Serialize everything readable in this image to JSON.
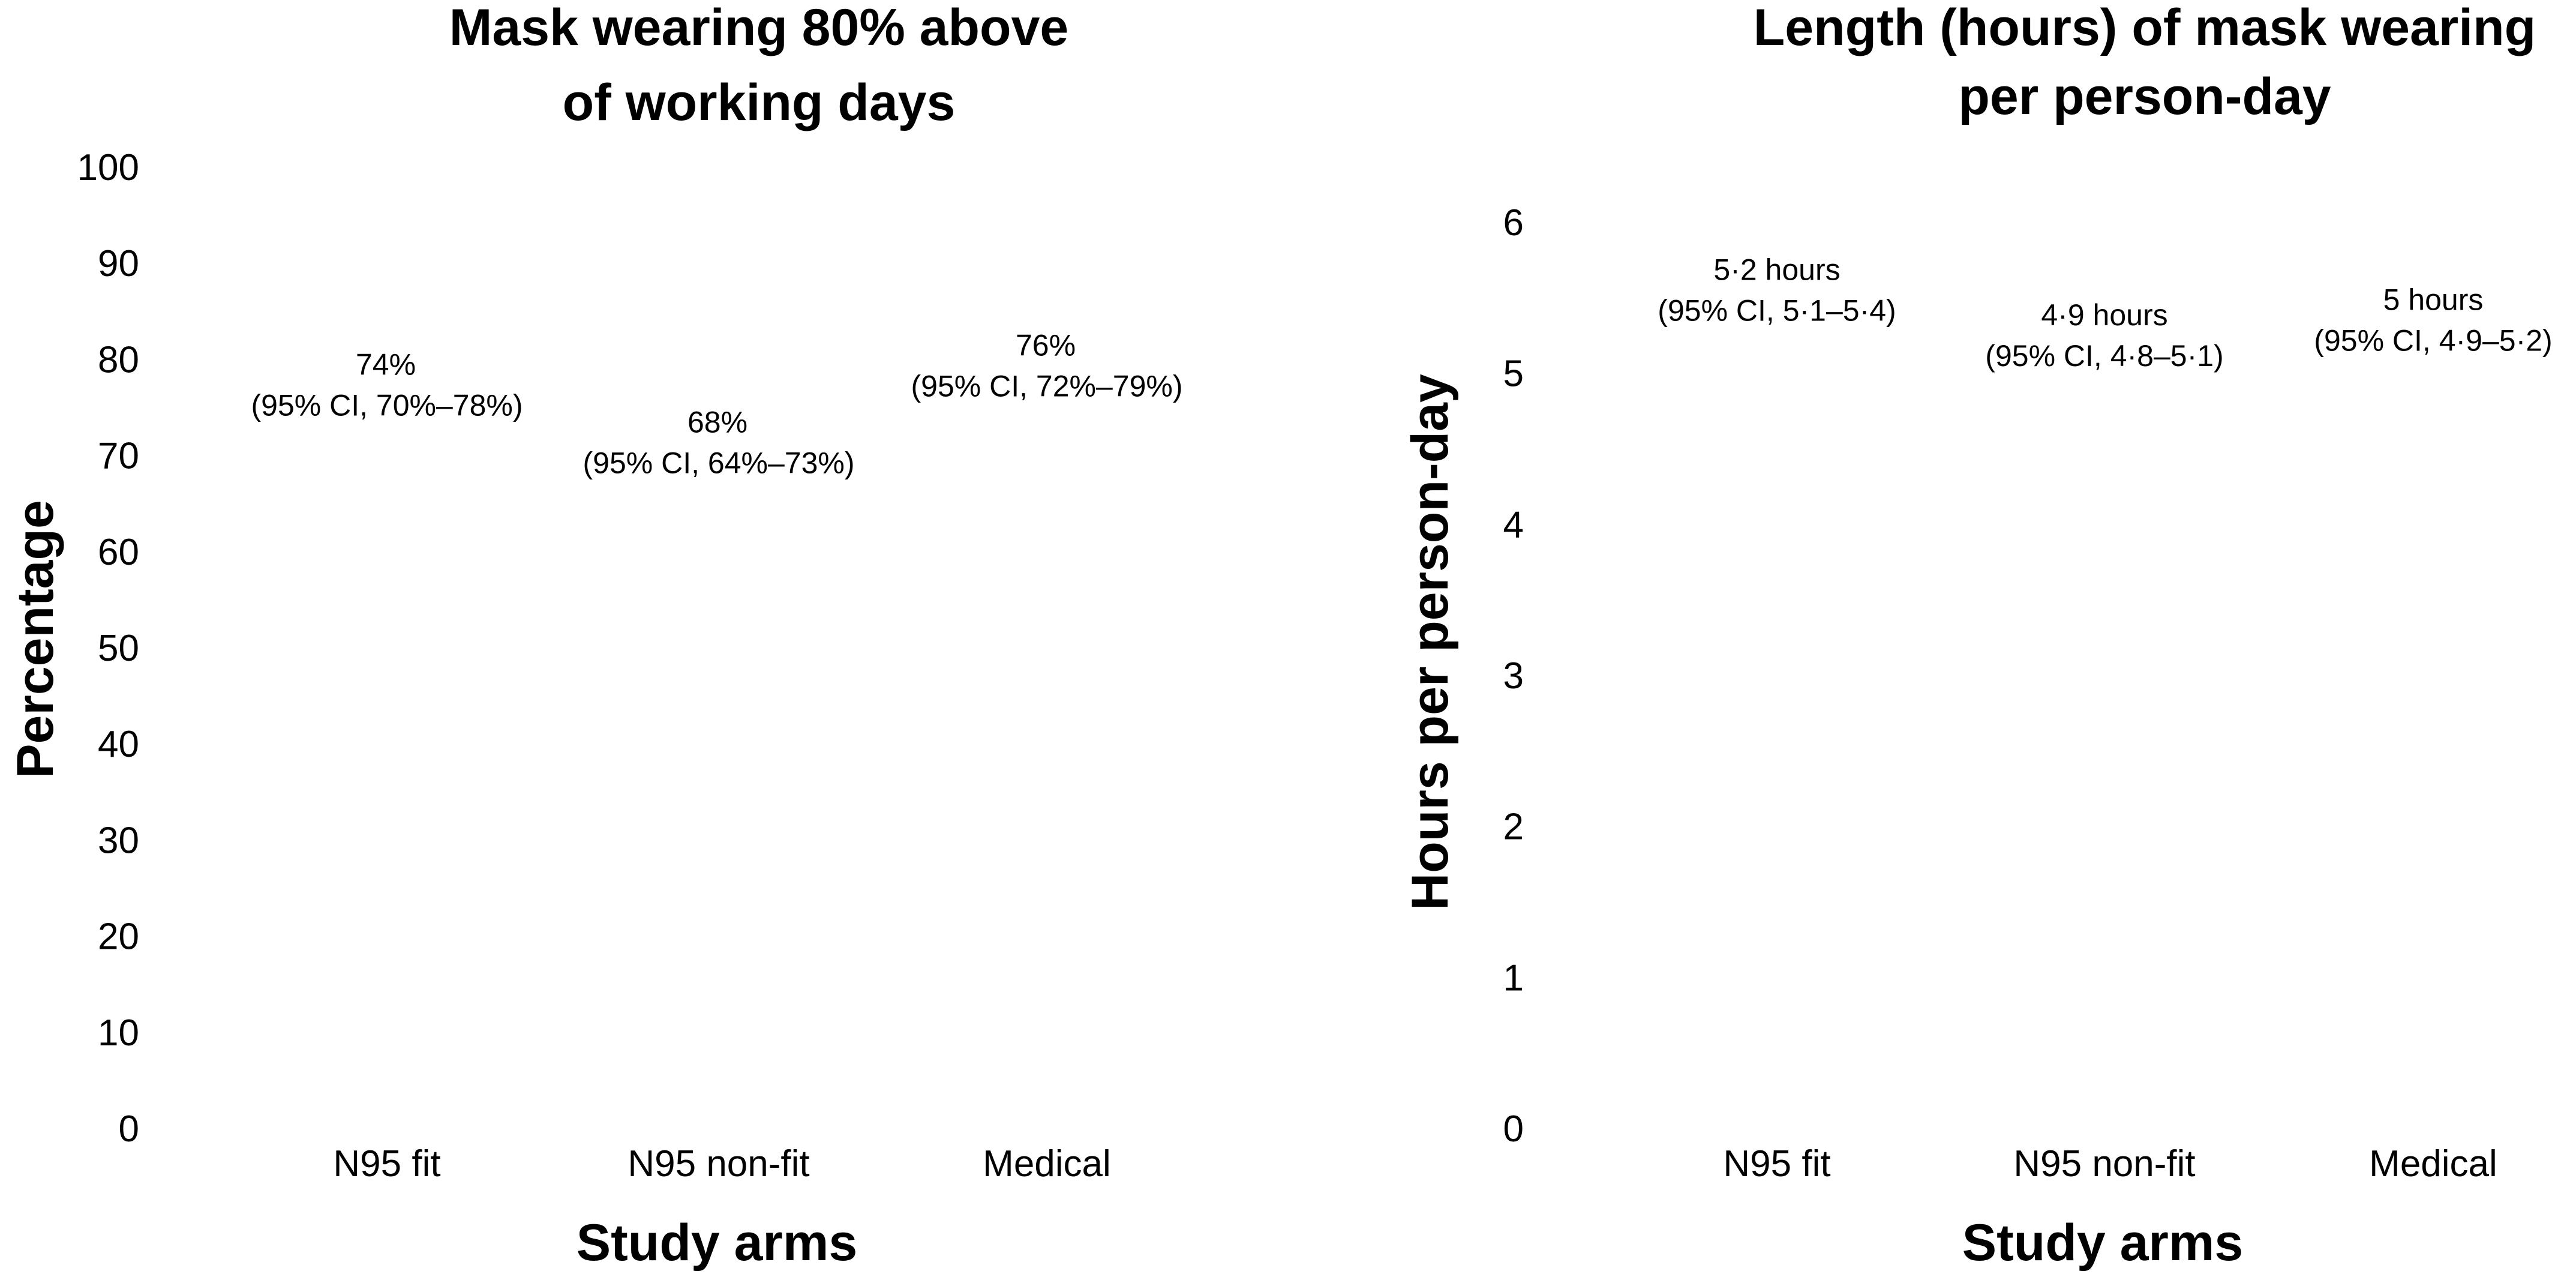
{
  "chart_data": [
    {
      "type": "bar",
      "title": [
        "Mask wearing 80% above",
        "of working days"
      ],
      "xlabel": "Study arms",
      "ylabel": "Percentage",
      "categories": [
        "N95 fit",
        "N95 non-fit",
        "Medical"
      ],
      "values": [
        74,
        68,
        76
      ],
      "ci": [
        [
          70,
          78
        ],
        [
          64,
          73
        ],
        [
          72,
          79
        ]
      ],
      "data_labels": [
        [
          "74%",
          "(95% CI, 70%–78%)"
        ],
        [
          "68%",
          "(95% CI, 64%–73%)"
        ],
        [
          "76%",
          "(95% CI, 72%–79%)"
        ]
      ],
      "yticks": [
        "0",
        "10",
        "20",
        "30",
        "40",
        "50",
        "60",
        "70",
        "80",
        "90",
        "100"
      ],
      "ylim": [
        0,
        100
      ],
      "grid": false
    },
    {
      "type": "bar",
      "title": [
        "Length (hours) of mask wearing",
        "per person-day"
      ],
      "xlabel": "Study arms",
      "ylabel": "Hours per person-day",
      "categories": [
        "N95 fit",
        "N95 non-fit",
        "Medical"
      ],
      "values": [
        5.2,
        4.9,
        5.0
      ],
      "ci": [
        [
          5.1,
          5.4
        ],
        [
          4.8,
          5.1
        ],
        [
          4.9,
          5.2
        ]
      ],
      "data_labels": [
        [
          "5·2 hours",
          "(95% CI, 5·1–5·4)"
        ],
        [
          "4·9 hours",
          "(95% CI, 4·8–5·1)"
        ],
        [
          "5 hours",
          "(95% CI, 4·9–5·2)"
        ]
      ],
      "yticks": [
        "0",
        "1",
        "2",
        "3",
        "4",
        "5",
        "6"
      ],
      "ylim": [
        0,
        6
      ],
      "grid": false
    }
  ]
}
